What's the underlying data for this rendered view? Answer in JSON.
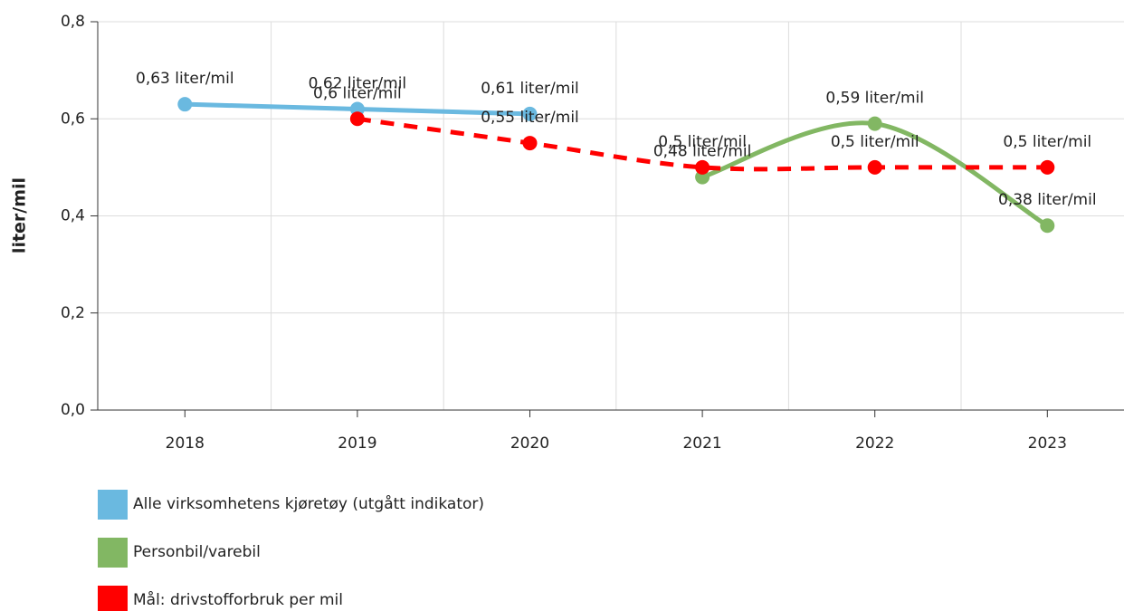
{
  "chart_data": {
    "type": "line",
    "y_label": "liter/mil",
    "categories": [
      "2018",
      "2019",
      "2020",
      "2021",
      "2022",
      "2023"
    ],
    "series": [
      {
        "name": "Alle virksomhetens kjøretøy (utgått indikator)",
        "color": "#6ab9e0",
        "dashed": false,
        "values": [
          0.63,
          0.62,
          0.61,
          null,
          null,
          null
        ],
        "value_labels": [
          "0,63 liter/mil",
          "0,62 liter/mil",
          "0,61 liter/mil",
          null,
          null,
          null
        ]
      },
      {
        "name": "Personbil/varebil",
        "color": "#82b763",
        "dashed": false,
        "values": [
          null,
          null,
          null,
          0.48,
          0.59,
          0.38
        ],
        "value_labels": [
          null,
          null,
          null,
          "0,48 liter/mil",
          "0,59 liter/mil",
          "0,38 liter/mil"
        ]
      },
      {
        "name": "Mål: drivstofforbruk per mil",
        "color": "#ff0000",
        "dashed": true,
        "values": [
          null,
          0.6,
          0.55,
          0.5,
          0.5,
          0.5
        ],
        "value_labels": [
          null,
          "0,6 liter/mil",
          "0,55 liter/mil",
          "0,5 liter/mil",
          "0,5 liter/mil",
          "0,5 liter/mil"
        ]
      }
    ],
    "ylim": [
      0,
      0.8
    ],
    "yticks": [
      {
        "value": 0,
        "label": "0,0"
      },
      {
        "value": 0.2,
        "label": "0,2"
      },
      {
        "value": 0.4,
        "label": "0,4"
      },
      {
        "value": 0.6,
        "label": "0,6"
      },
      {
        "value": 0.8,
        "label": "0,8"
      }
    ],
    "grid": true,
    "smooth": true,
    "legend": "bottom"
  }
}
